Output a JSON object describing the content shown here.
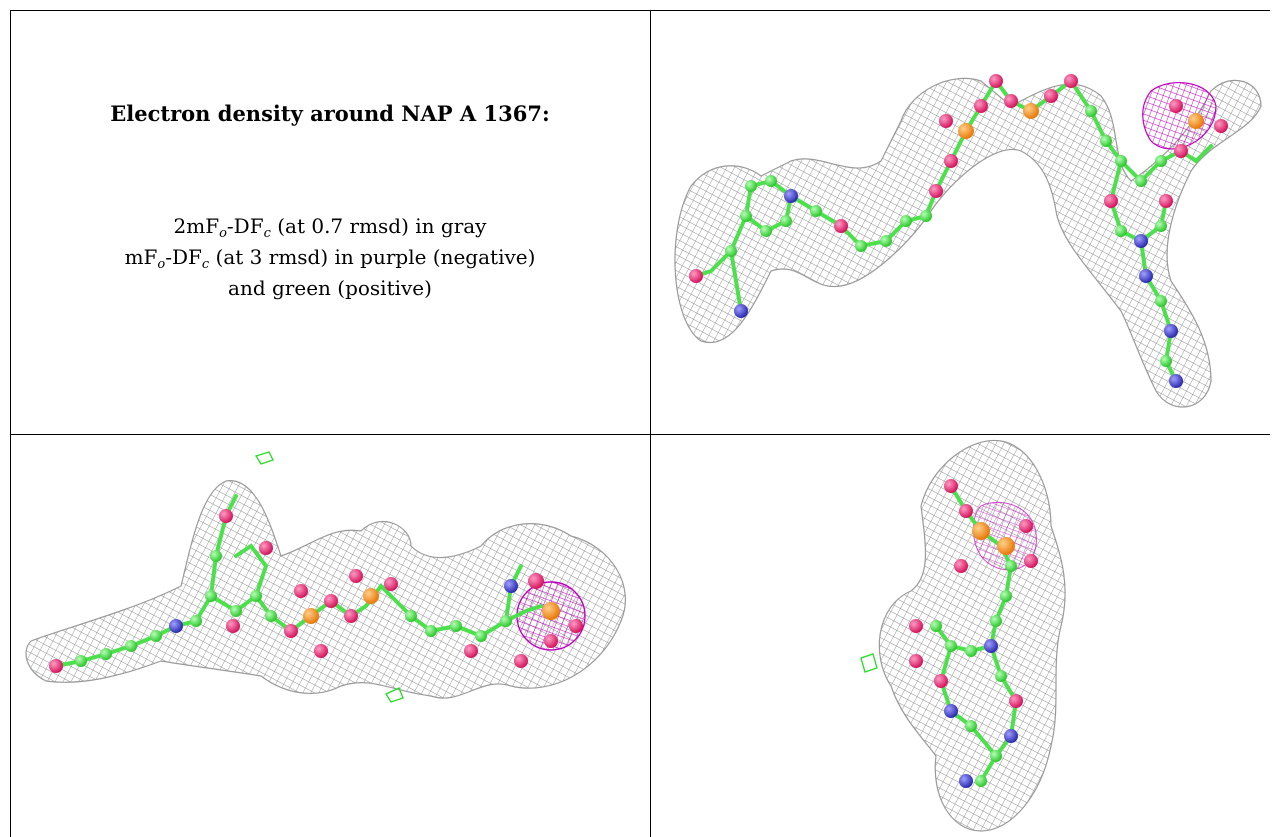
{
  "panel_text": {
    "title": "Electron density around NAP A 1367:",
    "line1": {
      "pre": "2mF",
      "sub1": "o",
      "mid": "-DF",
      "sub2": "c",
      "post": " (at 0.7 rmsd) in gray"
    },
    "line2": {
      "pre": "mF",
      "sub1": "o",
      "mid": "-DF",
      "sub2": "c",
      "post": " (at 3 rmsd) in purple (negative)"
    },
    "line3": "and green (positive)"
  },
  "colors": {
    "mesh_gray": "#9a9a9a",
    "carbon_green": "#3ddc3d",
    "oxygen_red": "#e8206a",
    "nitrogen_blue": "#3b3bc8",
    "phosphorus_orange": "#f28c1c",
    "negative_purple": "#c000c0",
    "positive_green": "#22dd22"
  }
}
